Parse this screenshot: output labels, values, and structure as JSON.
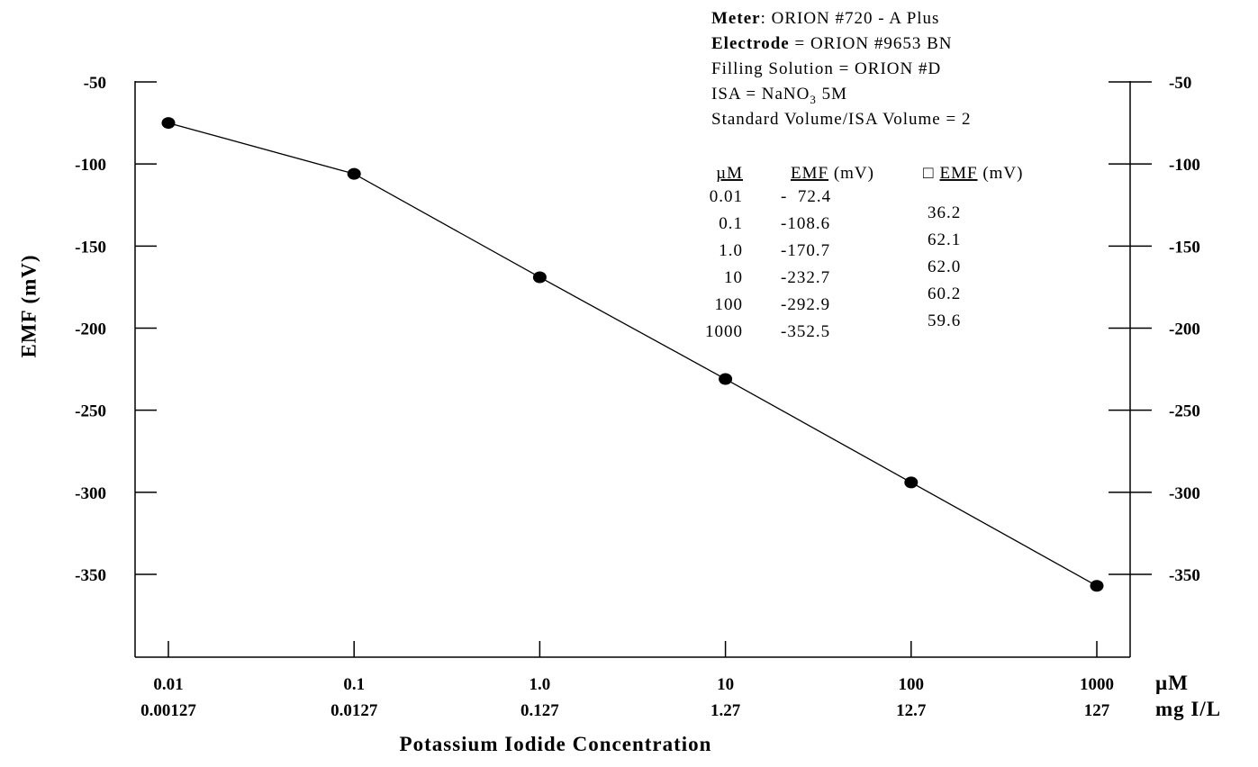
{
  "chart_data": {
    "type": "line",
    "xlabel": "Potassium Iodide Concentration",
    "ylabel": "EMF (mV)",
    "ylim": [
      -400,
      -30
    ],
    "y_ticks": [
      -50,
      -100,
      -150,
      -200,
      -250,
      -300,
      -350
    ],
    "x_unit_primary": "µM",
    "x_unit_secondary": "mg I/L",
    "x_scale": "log",
    "categories": [
      "0.01",
      "0.1",
      "1.0",
      "10",
      "100",
      "1000"
    ],
    "categories_secondary": [
      "0.00127",
      "0.0127",
      "0.127",
      "1.27",
      "12.7",
      "127"
    ],
    "x": [
      0.01,
      0.1,
      1,
      10,
      100,
      1000
    ],
    "y": [
      -75,
      -106,
      -169,
      -231,
      -294,
      -357
    ],
    "grid": false,
    "legend": "none"
  },
  "info": {
    "meter_label": "Meter",
    "meter_value": ": ORION #720 - A Plus",
    "electrode_label": "Electrode",
    "electrode_value": " = ORION #9653 BN",
    "filling": "Filling Solution = ORION #D",
    "isa_prefix": "ISA = NaNO",
    "isa_sub": "3",
    "isa_suffix": " 5M",
    "volume": "Standard Volume/ISA Volume = 2"
  },
  "table": {
    "col1_header": "µM",
    "col2_header": "EMF",
    "col2_unit": " (mV)",
    "col3_symbol": "□",
    "col3_header": "EMF",
    "col3_unit": " (mV)",
    "col1": [
      "0.01",
      "0.1",
      "1.0",
      "10",
      "100",
      "1000"
    ],
    "col2": [
      "-  72.4",
      "-108.6",
      "-170.7",
      "-232.7",
      "-292.9",
      "-352.5"
    ],
    "col3": [
      "36.2",
      "62.1",
      "62.0",
      "60.2",
      "59.6"
    ]
  }
}
